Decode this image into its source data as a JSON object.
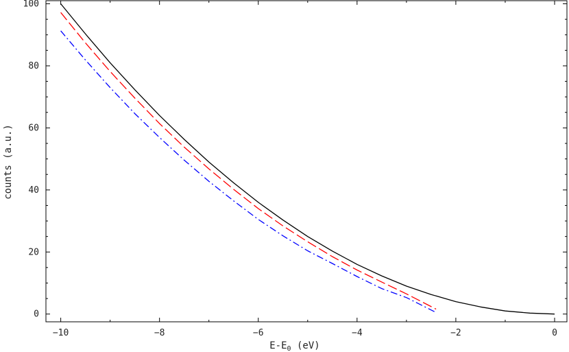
{
  "chart_data": {
    "type": "line",
    "title": "",
    "xlabel": "E-E",
    "xlabel_sub": "0",
    "xlabel_unit": " (eV)",
    "ylabel": "counts (a.u.)",
    "xlim": [
      -10.3,
      0.25
    ],
    "ylim": [
      -2.5,
      101
    ],
    "xticks": [
      -10,
      -8,
      -6,
      -4,
      -2,
      0
    ],
    "xtick_labels": [
      "−10",
      "−8",
      "−6",
      "−4",
      "−2",
      "0"
    ],
    "yticks": [
      0,
      20,
      40,
      60,
      80,
      100
    ],
    "ytick_labels": [
      "0",
      "20",
      "40",
      "60",
      "80",
      "100"
    ],
    "grid": false,
    "legend": "none",
    "series": [
      {
        "color": "#000000",
        "dash": "solid",
        "x": [
          -10,
          -9.5,
          -9,
          -8.5,
          -8,
          -7.5,
          -7,
          -6.5,
          -6,
          -5.5,
          -5,
          -4.5,
          -4,
          -3.5,
          -3,
          -2.5,
          -2,
          -1.5,
          -1,
          -0.5,
          0
        ],
        "y": [
          100,
          90.3,
          81,
          72.3,
          64,
          56.3,
          49,
          42.3,
          36,
          30.3,
          25,
          20.3,
          16,
          12.3,
          9,
          6.3,
          4,
          2.3,
          1,
          0.3,
          0
        ]
      },
      {
        "color": "#ff0000",
        "dash": "dashed",
        "x": [
          -10,
          -9.5,
          -9,
          -8.5,
          -8,
          -7.5,
          -7,
          -6.5,
          -6,
          -5.5,
          -5,
          -4.5,
          -4,
          -3.5,
          -3,
          -2.4
        ],
        "y": [
          97.2,
          87.4,
          78.2,
          69.6,
          61.4,
          53.8,
          46.8,
          40.2,
          34.0,
          28.4,
          23.3,
          18.5,
          14.2,
          10.3,
          6.5,
          1.6
        ]
      },
      {
        "color": "#0000ff",
        "dash": "dashdot",
        "x": [
          -10,
          -9.5,
          -9,
          -8.5,
          -8,
          -7.5,
          -7,
          -6.5,
          -6,
          -5.5,
          -5,
          -4.5,
          -4,
          -3.5,
          -3,
          -2.4
        ],
        "y": [
          91.3,
          81.9,
          73.0,
          64.6,
          56.9,
          49.6,
          42.8,
          36.5,
          30.5,
          25.2,
          20.4,
          16.3,
          12.1,
          8.2,
          5.3,
          0.5
        ]
      }
    ]
  }
}
